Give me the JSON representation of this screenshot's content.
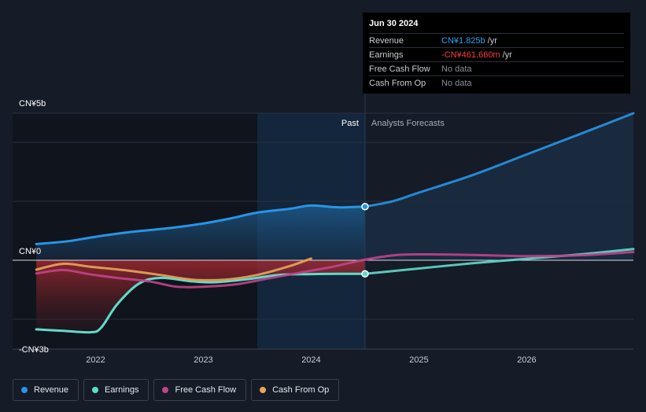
{
  "chart_data": {
    "type": "line",
    "y_unit": "CN¥b",
    "ylim": [
      -3,
      5
    ],
    "y_ticks": [
      {
        "value": 5,
        "label": "CN¥5b"
      },
      {
        "value": 0,
        "label": "CN¥0"
      },
      {
        "value": -3,
        "label": "-CN¥3b"
      }
    ],
    "x_ticks": [
      {
        "value": 2022.0,
        "label": "2022"
      },
      {
        "value": 2023.0,
        "label": "2023"
      },
      {
        "value": 2024.0,
        "label": "2024"
      },
      {
        "value": 2025.0,
        "label": "2025"
      },
      {
        "value": 2026.0,
        "label": "2026"
      }
    ],
    "xlim": [
      2021.23,
      2026.99
    ],
    "past_label": "Past",
    "forecast_label": "Analysts Forecasts",
    "forecast_start": 2024.5,
    "forecast_band_start": 2023.5,
    "series": [
      {
        "name": "Revenue",
        "color": "#2795e6",
        "points": [
          [
            2021.45,
            0.55
          ],
          [
            2021.75,
            0.65
          ],
          [
            2022.0,
            0.8
          ],
          [
            2022.3,
            0.95
          ],
          [
            2022.7,
            1.1
          ],
          [
            2023.0,
            1.25
          ],
          [
            2023.25,
            1.42
          ],
          [
            2023.5,
            1.62
          ],
          [
            2023.8,
            1.75
          ],
          [
            2024.0,
            1.86
          ],
          [
            2024.25,
            1.8
          ],
          [
            2024.5,
            1.825
          ],
          [
            2024.75,
            2.0
          ],
          [
            2025.0,
            2.3
          ],
          [
            2025.5,
            2.9
          ],
          [
            2026.0,
            3.6
          ],
          [
            2026.5,
            4.3
          ],
          [
            2026.99,
            5.0
          ]
        ]
      },
      {
        "name": "Earnings",
        "color": "#5fdcc9",
        "points": [
          [
            2021.45,
            -2.35
          ],
          [
            2021.7,
            -2.4
          ],
          [
            2021.95,
            -2.45
          ],
          [
            2022.05,
            -2.3
          ],
          [
            2022.2,
            -1.5
          ],
          [
            2022.4,
            -0.8
          ],
          [
            2022.6,
            -0.6
          ],
          [
            2022.9,
            -0.72
          ],
          [
            2023.1,
            -0.75
          ],
          [
            2023.4,
            -0.65
          ],
          [
            2023.7,
            -0.5
          ],
          [
            2024.0,
            -0.47
          ],
          [
            2024.25,
            -0.46
          ],
          [
            2024.5,
            -0.46166
          ],
          [
            2025.0,
            -0.28
          ],
          [
            2025.5,
            -0.1
          ],
          [
            2026.0,
            0.05
          ],
          [
            2026.5,
            0.2
          ],
          [
            2026.99,
            0.38
          ]
        ]
      },
      {
        "name": "Free Cash Flow",
        "color": "#c2428a",
        "points": [
          [
            2021.45,
            -0.45
          ],
          [
            2021.7,
            -0.33
          ],
          [
            2021.95,
            -0.48
          ],
          [
            2022.2,
            -0.6
          ],
          [
            2022.5,
            -0.72
          ],
          [
            2022.75,
            -0.9
          ],
          [
            2023.0,
            -0.9
          ],
          [
            2023.3,
            -0.82
          ],
          [
            2023.6,
            -0.62
          ],
          [
            2023.9,
            -0.42
          ],
          [
            2024.2,
            -0.22
          ],
          [
            2024.5,
            0.02
          ],
          [
            2024.8,
            0.18
          ],
          [
            2025.1,
            0.2
          ],
          [
            2025.5,
            0.18
          ],
          [
            2026.0,
            0.14
          ],
          [
            2026.5,
            0.17
          ],
          [
            2026.99,
            0.28
          ]
        ]
      },
      {
        "name": "Cash From Op",
        "color": "#e8a55b",
        "points": [
          [
            2021.45,
            -0.32
          ],
          [
            2021.7,
            -0.12
          ],
          [
            2021.95,
            -0.22
          ],
          [
            2022.3,
            -0.35
          ],
          [
            2022.6,
            -0.5
          ],
          [
            2022.9,
            -0.66
          ],
          [
            2023.2,
            -0.66
          ],
          [
            2023.5,
            -0.5
          ],
          [
            2023.8,
            -0.2
          ],
          [
            2024.0,
            0.06
          ]
        ]
      }
    ],
    "highlight": {
      "x": 2024.5,
      "points": [
        {
          "series": "Revenue",
          "value": 1.825
        },
        {
          "series": "Earnings",
          "value": -0.46166
        }
      ]
    }
  },
  "tooltip": {
    "date": "Jun 30 2024",
    "rows": [
      {
        "name": "Revenue",
        "value": "CN¥1.825b",
        "unit": "/yr"
      },
      {
        "name": "Earnings",
        "value": "-CN¥461.660m",
        "unit": "/yr"
      },
      {
        "name": "Free Cash Flow",
        "value": "No data"
      },
      {
        "name": "Cash From Op",
        "value": "No data"
      }
    ]
  },
  "legend": [
    {
      "label": "Revenue",
      "color": "#2795e6"
    },
    {
      "label": "Earnings",
      "color": "#5fdcc9"
    },
    {
      "label": "Free Cash Flow",
      "color": "#c2428a"
    },
    {
      "label": "Cash From Op",
      "color": "#e8a55b"
    }
  ]
}
